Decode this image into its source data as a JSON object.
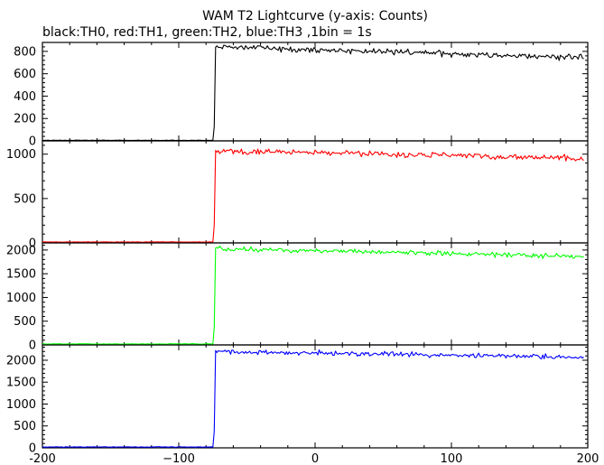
{
  "title": "WAM T2 Lightcurve (y-axis: Counts)",
  "subtitle": "black:TH0, red:TH1, green:TH2, blue:TH3 ,1bin = 1s",
  "chart_data": {
    "type": "line",
    "title": "WAM T2 Lightcurve (y-axis: Counts)",
    "subtitle": "black:TH0, red:TH1, green:TH2, blue:TH3 ,1bin = 1s",
    "xlim": [
      -200,
      200
    ],
    "x_ticks": [
      -200,
      -100,
      0,
      100,
      200
    ],
    "x_tick_labels": [
      "-200",
      "−100",
      "0",
      "100",
      "200"
    ],
    "onset_x": -73,
    "panels": [
      {
        "series": "TH0",
        "color": "#000000",
        "ylim": [
          0,
          880
        ],
        "y_ticks": [
          0,
          200,
          400,
          600,
          800
        ],
        "y_tick_labels": [
          "0",
          "200",
          "400",
          "600",
          "800"
        ],
        "pre_level": 5,
        "onset_step": 130,
        "peak_level": 840,
        "end_level": 745,
        "noise": 22
      },
      {
        "series": "TH1",
        "color": "#ff0000",
        "ylim": [
          0,
          1150
        ],
        "y_ticks": [
          0,
          500,
          1000
        ],
        "y_tick_labels": [
          "0",
          "500",
          "1000"
        ],
        "pre_level": 10,
        "onset_step": 200,
        "peak_level": 1040,
        "end_level": 950,
        "noise": 28
      },
      {
        "series": "TH2",
        "color": "#00ff00",
        "ylim": [
          0,
          2150
        ],
        "y_ticks": [
          0,
          500,
          1000,
          1500,
          2000
        ],
        "y_tick_labels": [
          "0",
          "500",
          "1000",
          "1500",
          "2000"
        ],
        "pre_level": 20,
        "onset_step": 380,
        "peak_level": 2030,
        "end_level": 1860,
        "noise": 42
      },
      {
        "series": "TH3",
        "color": "#0000ff",
        "ylim": [
          0,
          2350
        ],
        "y_ticks": [
          0,
          500,
          1000,
          1500,
          2000
        ],
        "y_tick_labels": [
          "0",
          "500",
          "1000",
          "1500",
          "2000"
        ],
        "pre_level": 20,
        "onset_step": 380,
        "peak_level": 2200,
        "end_level": 2070,
        "noise": 45
      }
    ]
  }
}
